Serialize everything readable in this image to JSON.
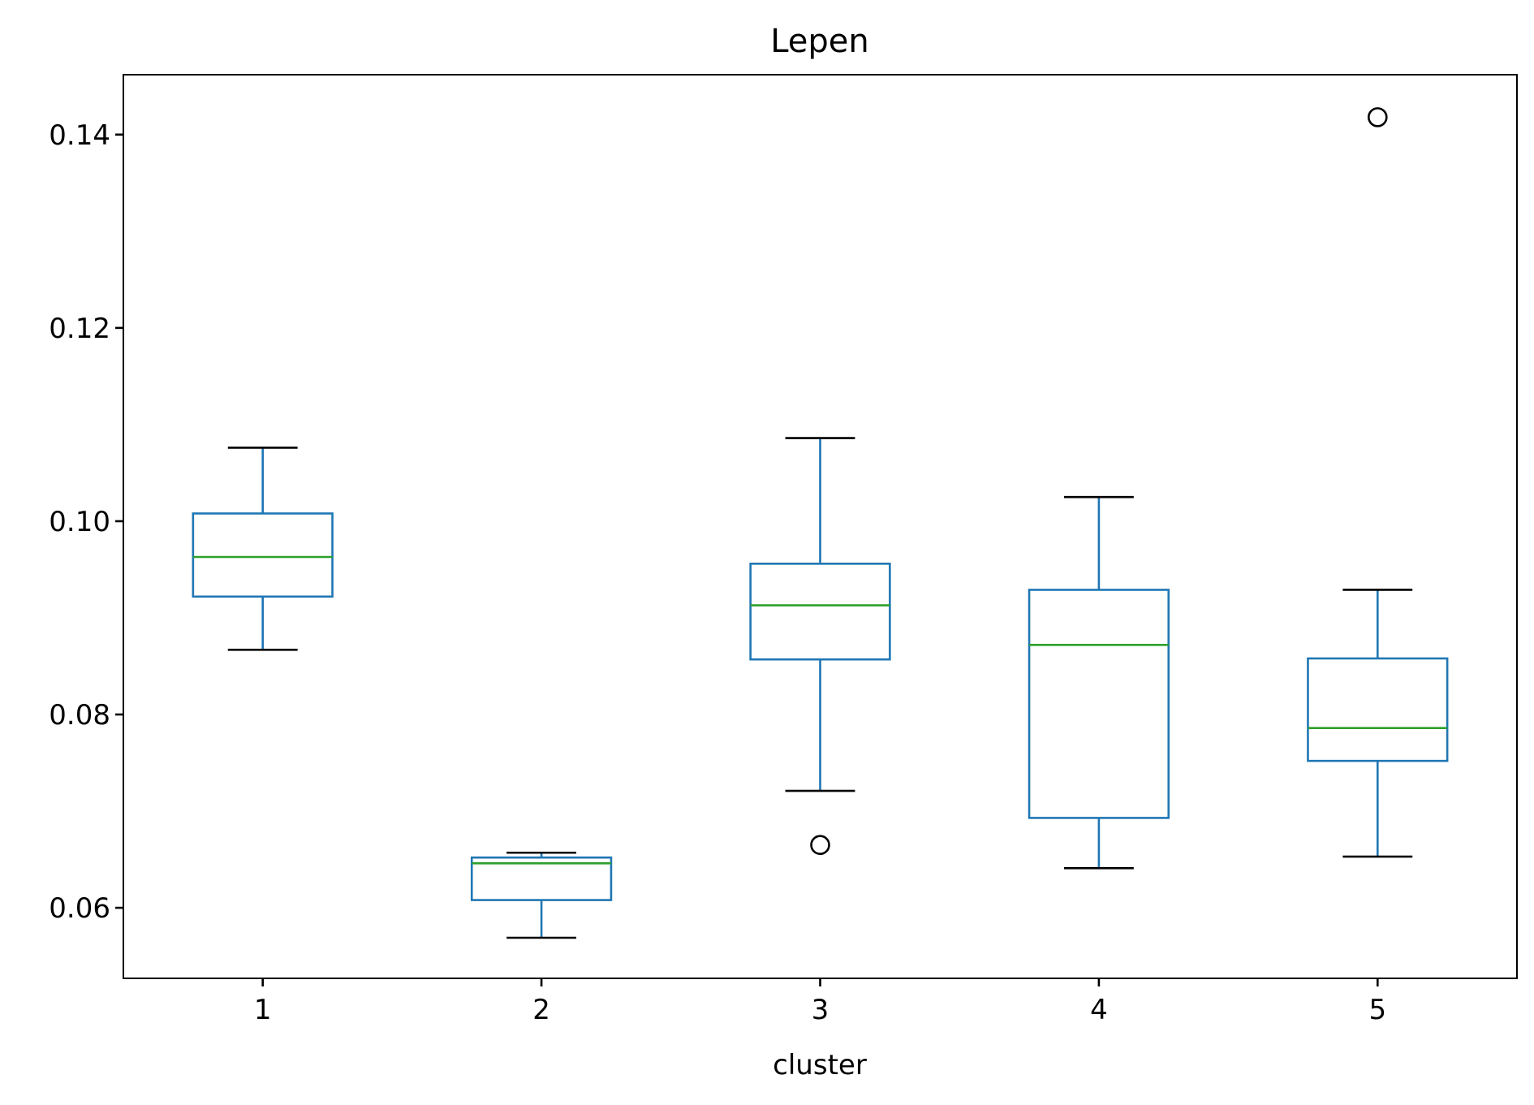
{
  "chart_data": {
    "type": "box",
    "title": "Lepen",
    "xlabel": "cluster",
    "ylabel": "",
    "categories": [
      "1",
      "2",
      "3",
      "4",
      "5"
    ],
    "ylim": [
      0.0527,
      0.1462
    ],
    "yticks": [
      "0.06",
      "0.08",
      "0.10",
      "0.12",
      "0.14"
    ],
    "grid": false,
    "boxes": [
      {
        "category": "1",
        "whislo": 0.0867,
        "q1": 0.0922,
        "med": 0.0963,
        "q3": 0.1008,
        "whishi": 0.1076,
        "fliers": []
      },
      {
        "category": "2",
        "whislo": 0.0569,
        "q1": 0.0608,
        "med": 0.0646,
        "q3": 0.0652,
        "whishi": 0.0657,
        "fliers": []
      },
      {
        "category": "3",
        "whislo": 0.0721,
        "q1": 0.0857,
        "med": 0.0913,
        "q3": 0.0956,
        "whishi": 0.1086,
        "fliers": [
          0.0665
        ]
      },
      {
        "category": "4",
        "whislo": 0.0641,
        "q1": 0.0693,
        "med": 0.0872,
        "q3": 0.0929,
        "whishi": 0.1025,
        "fliers": []
      },
      {
        "category": "5",
        "whislo": 0.0653,
        "q1": 0.0752,
        "med": 0.0786,
        "q3": 0.0858,
        "whishi": 0.0929,
        "fliers": [
          0.1418
        ]
      }
    ],
    "colors": {
      "box": "#1f77b4",
      "median": "#2ca02c",
      "whisker_cap": "#000000",
      "flier": "#000000"
    }
  }
}
